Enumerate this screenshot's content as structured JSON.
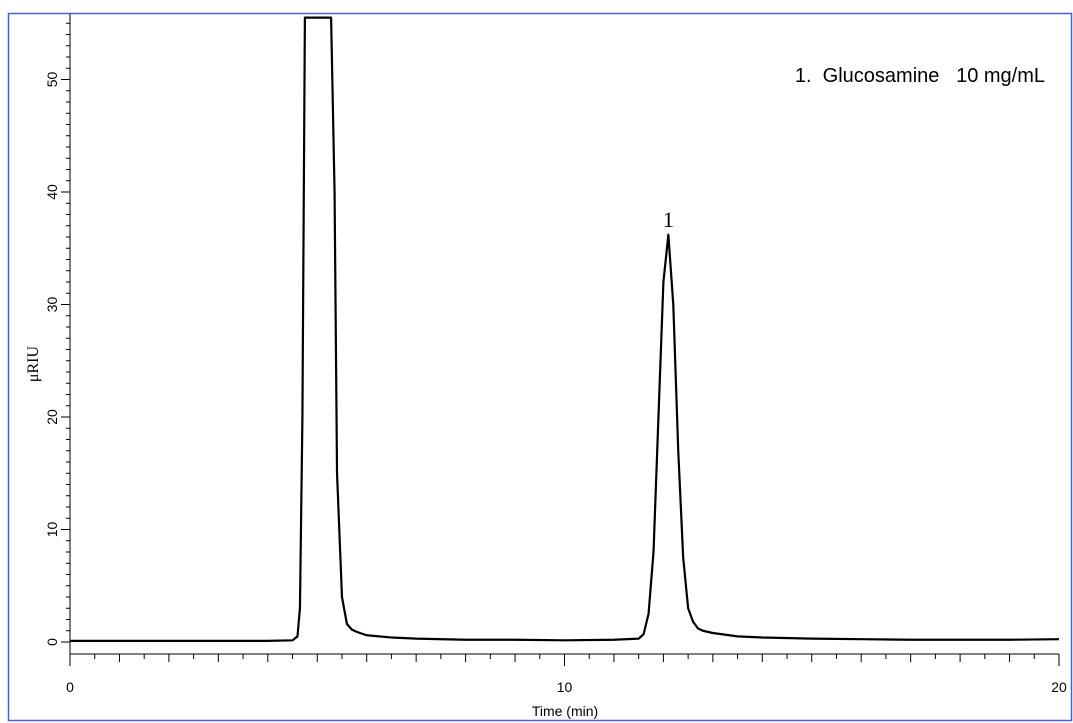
{
  "chart_data": {
    "type": "line",
    "title": "",
    "xlabel": "Time (min)",
    "ylabel": "μRIU",
    "xlim": [
      0,
      20
    ],
    "ylim": [
      -1,
      55.5
    ],
    "xticks": [
      0,
      10,
      20
    ],
    "yticks": [
      0,
      10,
      20,
      30,
      40,
      50
    ],
    "grid": false,
    "annotation": "1.  Glucosamine   10 mg/mL",
    "series": [
      {
        "x": [
          0,
          1,
          2,
          3,
          4,
          4.5,
          4.6,
          4.65,
          4.7,
          4.75,
          4.8,
          4.85,
          5.0,
          5.1,
          5.2,
          5.28,
          5.35,
          5.4,
          5.5,
          5.6,
          5.7,
          5.8,
          6.0,
          6.5,
          7,
          8,
          9,
          10,
          11,
          11.5,
          11.6,
          11.7,
          11.8,
          11.9,
          12.0,
          12.1,
          12.2,
          12.3,
          12.4,
          12.5,
          12.6,
          12.7,
          12.8,
          13.0,
          13.5,
          14,
          15,
          16,
          17,
          18,
          19,
          20
        ],
        "y": [
          0.1,
          0.1,
          0.1,
          0.1,
          0.1,
          0.15,
          0.5,
          3,
          20,
          55.5,
          55.5,
          55.5,
          55.5,
          55.5,
          55.5,
          55.5,
          40,
          15,
          4,
          1.6,
          1.1,
          0.9,
          0.6,
          0.4,
          0.3,
          0.2,
          0.2,
          0.15,
          0.2,
          0.3,
          0.7,
          2.5,
          8,
          20,
          32,
          36.2,
          30,
          17,
          7.5,
          3,
          1.8,
          1.2,
          1.0,
          0.8,
          0.5,
          0.4,
          0.3,
          0.25,
          0.2,
          0.2,
          0.2,
          0.25
        ]
      }
    ],
    "peak_labels": [
      {
        "text": "1",
        "x": 12.1,
        "y": 36.2
      }
    ]
  }
}
